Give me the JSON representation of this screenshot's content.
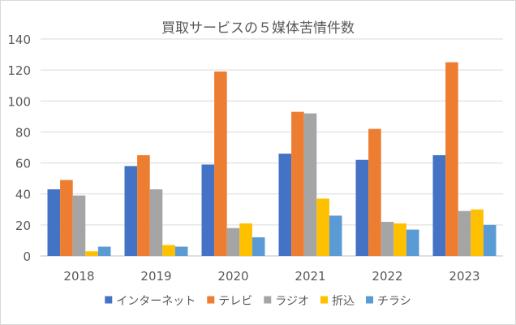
{
  "chart_data": {
    "type": "bar",
    "title": "買取サービスの５媒体苦情件数",
    "xlabel": "",
    "ylabel": "",
    "categories": [
      "2018",
      "2019",
      "2020",
      "2021",
      "2022",
      "2023"
    ],
    "ylim": [
      0,
      140
    ],
    "yticks": [
      0,
      20,
      40,
      60,
      80,
      100,
      120,
      140
    ],
    "grid": true,
    "legend_position": "bottom",
    "series": [
      {
        "name": "インターネット",
        "color": "#4472c4",
        "values": [
          43,
          58,
          59,
          66,
          62,
          65
        ]
      },
      {
        "name": "テレビ",
        "color": "#ed7d31",
        "values": [
          49,
          65,
          119,
          93,
          82,
          125
        ]
      },
      {
        "name": "ラジオ",
        "color": "#a5a5a5",
        "values": [
          39,
          43,
          18,
          92,
          22,
          29
        ]
      },
      {
        "name": "折込",
        "color": "#ffc000",
        "values": [
          3,
          7,
          21,
          37,
          21,
          30
        ]
      },
      {
        "name": "チラシ",
        "color": "#5b9bd5",
        "values": [
          6,
          6,
          12,
          26,
          17,
          20
        ]
      }
    ]
  }
}
